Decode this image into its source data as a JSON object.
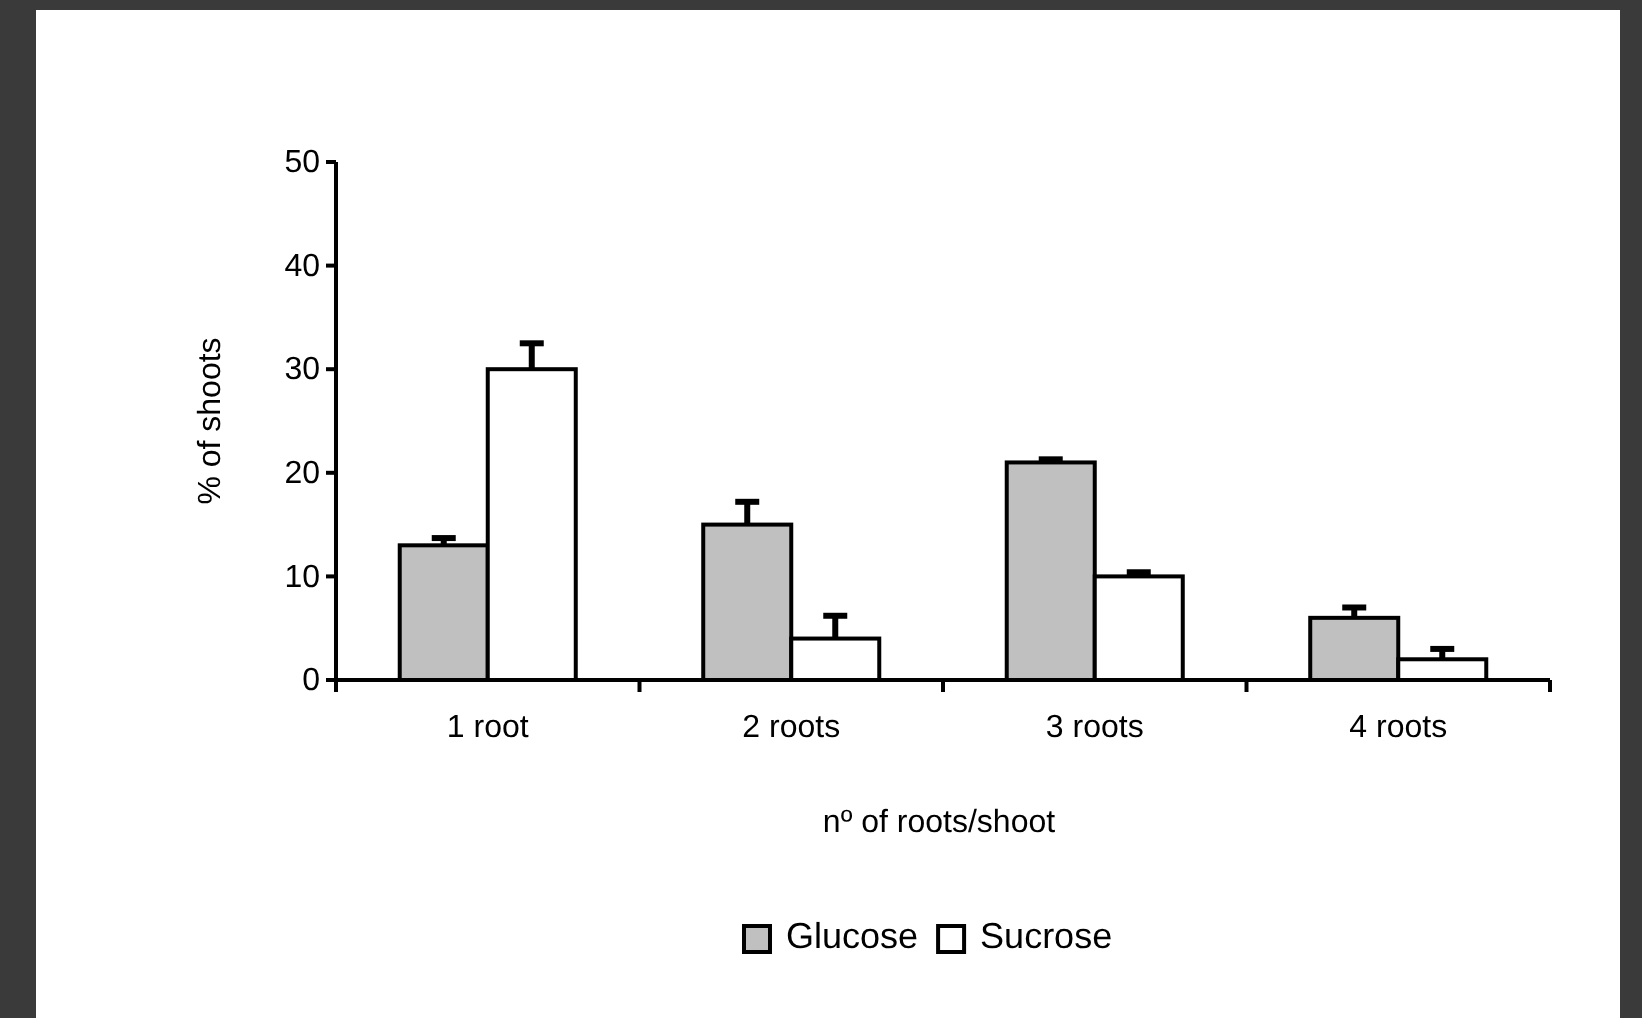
{
  "chart_data": {
    "type": "bar",
    "xlabel": "nº of roots/shoot",
    "ylabel": "% of shoots",
    "categories": [
      "1 root",
      "2 roots",
      "3 roots",
      "4 roots"
    ],
    "series": [
      {
        "name": "Glucose",
        "color": "#c0c0c0",
        "values": [
          13,
          15,
          21,
          6
        ],
        "errors": [
          [
            13,
            13.7
          ],
          [
            15,
            17.2
          ],
          [
            21,
            21.3
          ],
          [
            6,
            7
          ]
        ]
      },
      {
        "name": "Sucrose",
        "color": "#ffffff",
        "values": [
          30,
          4,
          10,
          2
        ],
        "errors": [
          [
            30,
            32.5
          ],
          [
            4,
            6.2
          ],
          [
            10,
            10.4
          ],
          [
            2,
            3
          ]
        ]
      }
    ],
    "ylim": [
      0,
      50
    ],
    "yticks": [
      0,
      10,
      20,
      30,
      40,
      50
    ],
    "grid": false,
    "legend": "bottom"
  }
}
